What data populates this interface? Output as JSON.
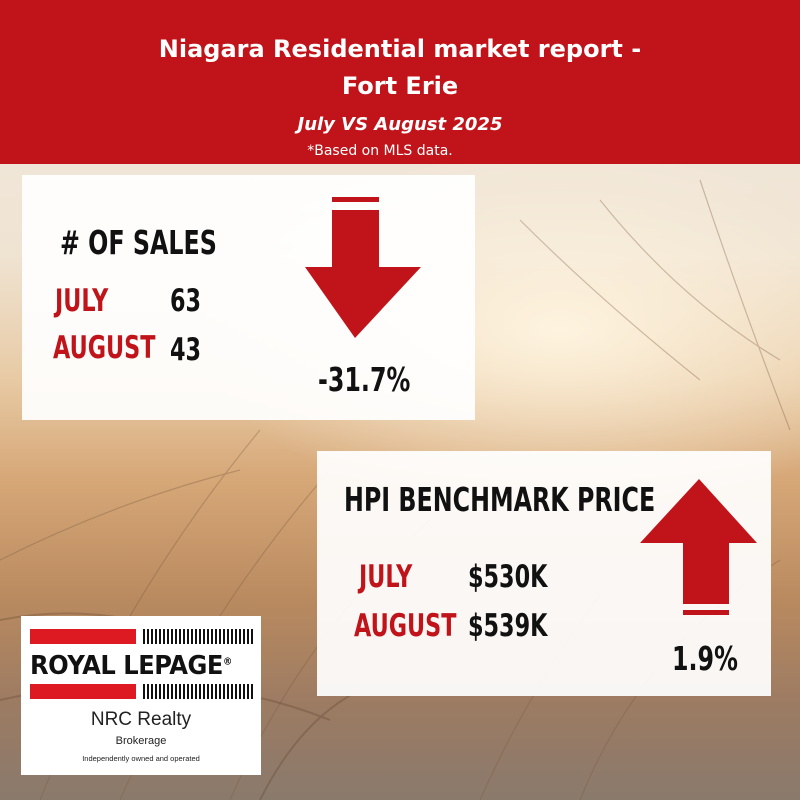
{
  "header": {
    "title_line1": "Niagara Residential market report -",
    "title_line2": "Fort Erie",
    "subtitle": "July VS August 2025",
    "note": "*Based on MLS data."
  },
  "sales": {
    "heading": "# OF SALES",
    "rows": [
      {
        "month": "JULY",
        "value": "63"
      },
      {
        "month": "AUGUST",
        "value": "43"
      }
    ],
    "change": "-31.7%",
    "direction": "down"
  },
  "hpi": {
    "heading": "HPI BENCHMARK PRICE",
    "rows": [
      {
        "month": "JULY",
        "value": "$530K"
      },
      {
        "month": "AUGUST",
        "value": "$539K"
      }
    ],
    "change": "1.9%",
    "direction": "up"
  },
  "logo": {
    "brand": "ROYAL LEPAGE",
    "office": "NRC Realty",
    "brokerage": "Brokerage",
    "independent": "Independently owned and operated"
  },
  "colors": {
    "brand_red": "#c0141a",
    "text": "#111111",
    "card": "#ffffff"
  },
  "icons": [
    "arrow-down-icon",
    "arrow-up-icon",
    "royal-lepage-logo"
  ]
}
